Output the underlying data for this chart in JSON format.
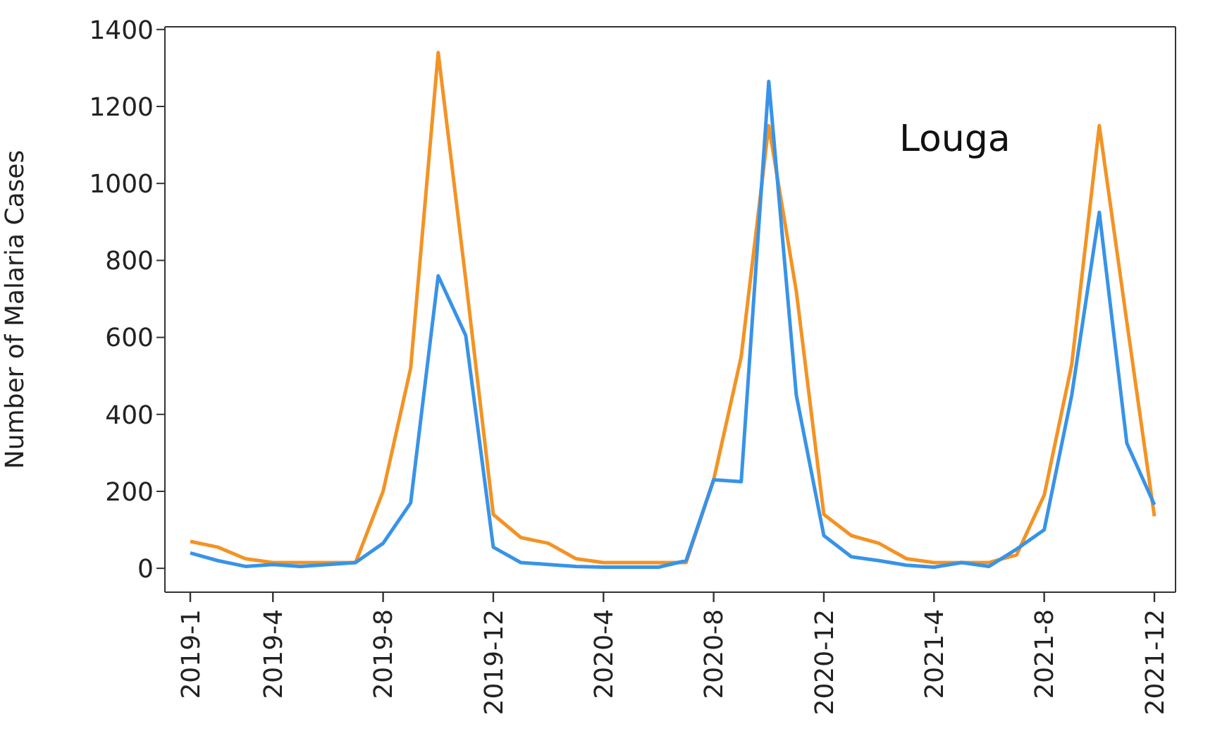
{
  "chart_data": {
    "type": "line",
    "ylabel": "Number of Malaria Cases",
    "annotations": [
      "Louga"
    ],
    "categories": [
      "2019-1",
      null,
      null,
      "2019-4",
      null,
      null,
      null,
      "2019-8",
      null,
      null,
      null,
      "2019-12",
      null,
      null,
      null,
      "2020-4",
      null,
      null,
      null,
      "2020-8",
      null,
      null,
      null,
      "2020-12",
      null,
      null,
      null,
      "2021-4",
      null,
      null,
      null,
      "2021-8",
      null,
      null,
      null,
      "2021-12"
    ],
    "series": [
      {
        "color": "#f39324",
        "values": [
          70,
          55,
          25,
          15,
          15,
          15,
          15,
          200,
          520,
          1340,
          750,
          140,
          80,
          65,
          25,
          15,
          15,
          15,
          15,
          230,
          550,
          1150,
          720,
          140,
          85,
          65,
          25,
          15,
          15,
          15,
          35,
          190,
          530,
          1150,
          640,
          135
        ]
      },
      {
        "color": "#3893e8",
        "values": [
          40,
          20,
          5,
          10,
          5,
          10,
          15,
          65,
          170,
          760,
          605,
          55,
          15,
          10,
          5,
          3,
          3,
          3,
          20,
          230,
          225,
          1265,
          450,
          85,
          30,
          20,
          8,
          3,
          15,
          5,
          50,
          100,
          450,
          925,
          325,
          165
        ]
      }
    ],
    "ylim": [
      -62,
      1407
    ],
    "yticks": [
      0,
      200,
      400,
      600,
      800,
      1000,
      1200,
      1400
    ],
    "grid": false,
    "line_style": "solid"
  }
}
